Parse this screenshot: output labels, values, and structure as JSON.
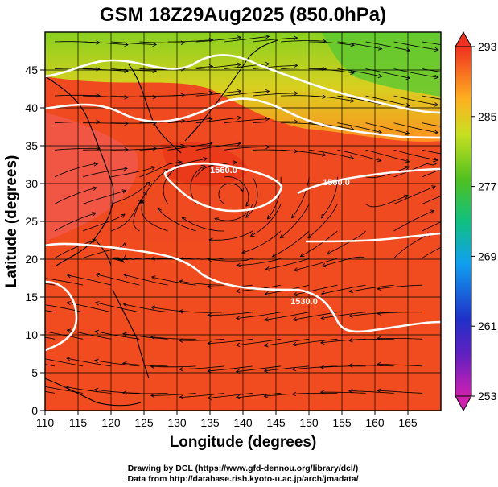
{
  "title": "GSM 18Z29Aug2025 (850.0hPa)",
  "chart_data": {
    "type": "heatmap",
    "title": "GSM 18Z29Aug2025 (850.0hPa)",
    "xlabel": "Longitude (degrees)",
    "ylabel": "Latitude  (degrees)",
    "xlim": [
      110,
      170
    ],
    "ylim": [
      0,
      50
    ],
    "x_ticks": [
      "110",
      "115",
      "120",
      "125",
      "130",
      "135",
      "140",
      "145",
      "150",
      "155",
      "160",
      "165"
    ],
    "y_ticks": [
      "0",
      "5",
      "10",
      "15",
      "20",
      "25",
      "30",
      "35",
      "40",
      "45"
    ],
    "grid": true,
    "colorbar": {
      "min": 253,
      "max": 293,
      "ticks": [
        "253",
        "261",
        "269",
        "277",
        "285",
        "293"
      ],
      "colors": [
        "#d020b0",
        "#2020c0",
        "#2080ff",
        "#00c0a0",
        "#40c020",
        "#c0e020",
        "#ffa020",
        "#f03020"
      ]
    },
    "contours": [
      {
        "label": "1560.0",
        "lon": 139,
        "lat": 34
      },
      {
        "label": "1560.0",
        "lon": 154,
        "lat": 32
      },
      {
        "label": "1530.0",
        "lon": 146,
        "lat": 13
      }
    ],
    "overlay": "wind streamlines"
  },
  "credits": {
    "line1": "Drawing by DCL (https://www.gfd-dennou.org/library/dcl/)",
    "line2": "Data from http://database.rish.kyoto-u.ac.jp/arch/jmadata/"
  }
}
